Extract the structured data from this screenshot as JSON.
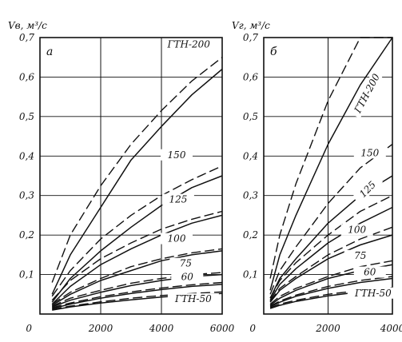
{
  "chart_data": [
    {
      "type": "line",
      "panel_label": "а",
      "ylabel": "V_в, м³/с",
      "xlabel": "",
      "xlim": [
        0,
        6000
      ],
      "ylim": [
        0,
        0.7
      ],
      "x_ticks": [
        0,
        2000,
        4000,
        6000
      ],
      "y_ticks": [
        0.1,
        0.2,
        0.3,
        0.4,
        0.5,
        0.6,
        0.7
      ],
      "grid": true,
      "x": [
        400,
        1000,
        2000,
        3000,
        4000,
        5000,
        6000
      ],
      "series": [
        {
          "name": "ГТН-200",
          "solid": [
            0.05,
            0.15,
            0.27,
            0.39,
            0.475,
            0.555,
            0.62
          ],
          "dashed": [
            0.08,
            0.2,
            0.325,
            0.43,
            0.515,
            0.59,
            0.65
          ]
        },
        {
          "name": "150",
          "solid": [
            0.03,
            0.09,
            0.16,
            0.22,
            0.275,
            0.32,
            0.35
          ],
          "dashed": [
            0.045,
            0.11,
            0.19,
            0.25,
            0.3,
            0.34,
            0.375
          ]
        },
        {
          "name": "125",
          "solid": [
            0.025,
            0.07,
            0.125,
            0.165,
            0.2,
            0.23,
            0.25
          ],
          "dashed": [
            0.035,
            0.085,
            0.14,
            0.18,
            0.215,
            0.24,
            0.26
          ]
        },
        {
          "name": "100",
          "solid": [
            0.022,
            0.05,
            0.085,
            0.11,
            0.135,
            0.15,
            0.16
          ],
          "dashed": [
            0.025,
            0.055,
            0.09,
            0.12,
            0.14,
            0.155,
            0.165
          ]
        },
        {
          "name": "75",
          "solid": [
            0.018,
            0.035,
            0.055,
            0.072,
            0.085,
            0.095,
            0.1
          ],
          "dashed": [
            0.02,
            0.04,
            0.06,
            0.078,
            0.09,
            0.1,
            0.105
          ]
        },
        {
          "name": "60",
          "solid": [
            0.014,
            0.025,
            0.04,
            0.052,
            0.062,
            0.07,
            0.075
          ],
          "dashed": [
            0.016,
            0.028,
            0.044,
            0.056,
            0.066,
            0.074,
            0.08
          ]
        },
        {
          "name": "ГТН-50",
          "solid": [
            0.01,
            0.018,
            0.028,
            0.036,
            0.043,
            0.048,
            0.052
          ],
          "dashed": [
            0.012,
            0.02,
            0.031,
            0.04,
            0.047,
            0.052,
            0.056
          ]
        }
      ]
    },
    {
      "type": "line",
      "panel_label": "б",
      "ylabel": "V_г, м³/с",
      "xlabel": "",
      "xlim": [
        0,
        4000
      ],
      "ylim": [
        0,
        0.7
      ],
      "x_ticks": [
        0,
        2000,
        4000
      ],
      "y_ticks": [
        0.1,
        0.2,
        0.3,
        0.4,
        0.5,
        0.6,
        0.7
      ],
      "grid": true,
      "x": [
        200,
        500,
        1000,
        2000,
        3000,
        4000
      ],
      "series": [
        {
          "name": "ГТН-200",
          "solid": [
            0.06,
            0.15,
            0.25,
            0.43,
            0.58,
            0.7
          ],
          "dashed": [
            0.09,
            0.2,
            0.33,
            0.54,
            0.7,
            0.7
          ]
        },
        {
          "name": "150",
          "solid": [
            0.04,
            0.09,
            0.14,
            0.23,
            0.3,
            0.35
          ],
          "dashed": [
            0.05,
            0.11,
            0.17,
            0.28,
            0.37,
            0.43
          ]
        },
        {
          "name": "125",
          "solid": [
            0.035,
            0.075,
            0.115,
            0.18,
            0.23,
            0.27
          ],
          "dashed": [
            0.04,
            0.085,
            0.13,
            0.2,
            0.26,
            0.3
          ]
        },
        {
          "name": "100",
          "solid": [
            0.03,
            0.06,
            0.09,
            0.14,
            0.175,
            0.2
          ],
          "dashed": [
            0.032,
            0.065,
            0.095,
            0.15,
            0.19,
            0.22
          ]
        },
        {
          "name": "75",
          "solid": [
            0.022,
            0.04,
            0.06,
            0.09,
            0.11,
            0.125
          ],
          "dashed": [
            0.025,
            0.045,
            0.065,
            0.095,
            0.12,
            0.135
          ]
        },
        {
          "name": "60",
          "solid": [
            0.018,
            0.03,
            0.045,
            0.065,
            0.08,
            0.09
          ],
          "dashed": [
            0.02,
            0.033,
            0.048,
            0.07,
            0.085,
            0.095
          ]
        },
        {
          "name": "ГТН-50",
          "solid": [
            0.014,
            0.022,
            0.032,
            0.046,
            0.056,
            0.062
          ],
          "dashed": [
            0.016,
            0.025,
            0.035,
            0.05,
            0.06,
            0.067
          ]
        }
      ]
    }
  ]
}
